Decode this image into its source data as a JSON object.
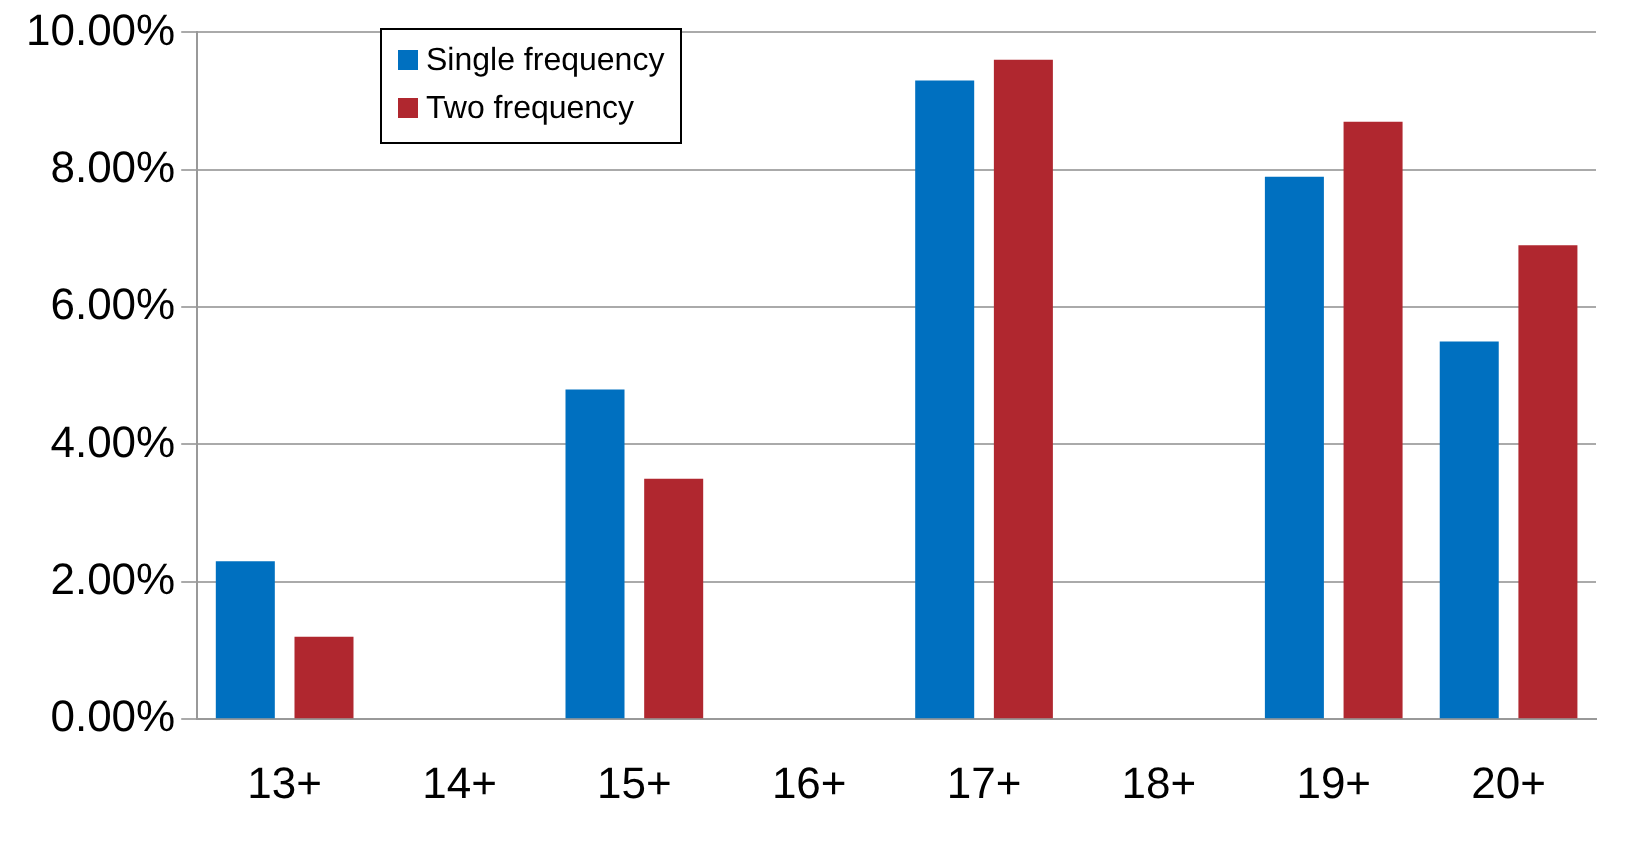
{
  "chart_data": {
    "type": "bar",
    "categories": [
      "13+",
      "14+",
      "15+",
      "16+",
      "17+",
      "18+",
      "19+",
      "20+"
    ],
    "series": [
      {
        "name": "Single frequency",
        "color": "#0070c0",
        "values": [
          2.3,
          null,
          4.8,
          null,
          9.3,
          null,
          7.9,
          5.5
        ]
      },
      {
        "name": "Two frequency",
        "color": "#b0272f",
        "values": [
          1.2,
          null,
          3.5,
          null,
          9.6,
          null,
          8.7,
          6.9
        ]
      }
    ],
    "ylim": [
      0,
      10
    ],
    "yticks": [
      {
        "value": 0,
        "label": "0.00%"
      },
      {
        "value": 2,
        "label": "2.00%"
      },
      {
        "value": 4,
        "label": "4.00%"
      },
      {
        "value": 6,
        "label": "6.00%"
      },
      {
        "value": 8,
        "label": "8.00%"
      },
      {
        "value": 10,
        "label": "10.00%"
      }
    ],
    "grid": "y",
    "legend": "top left"
  }
}
